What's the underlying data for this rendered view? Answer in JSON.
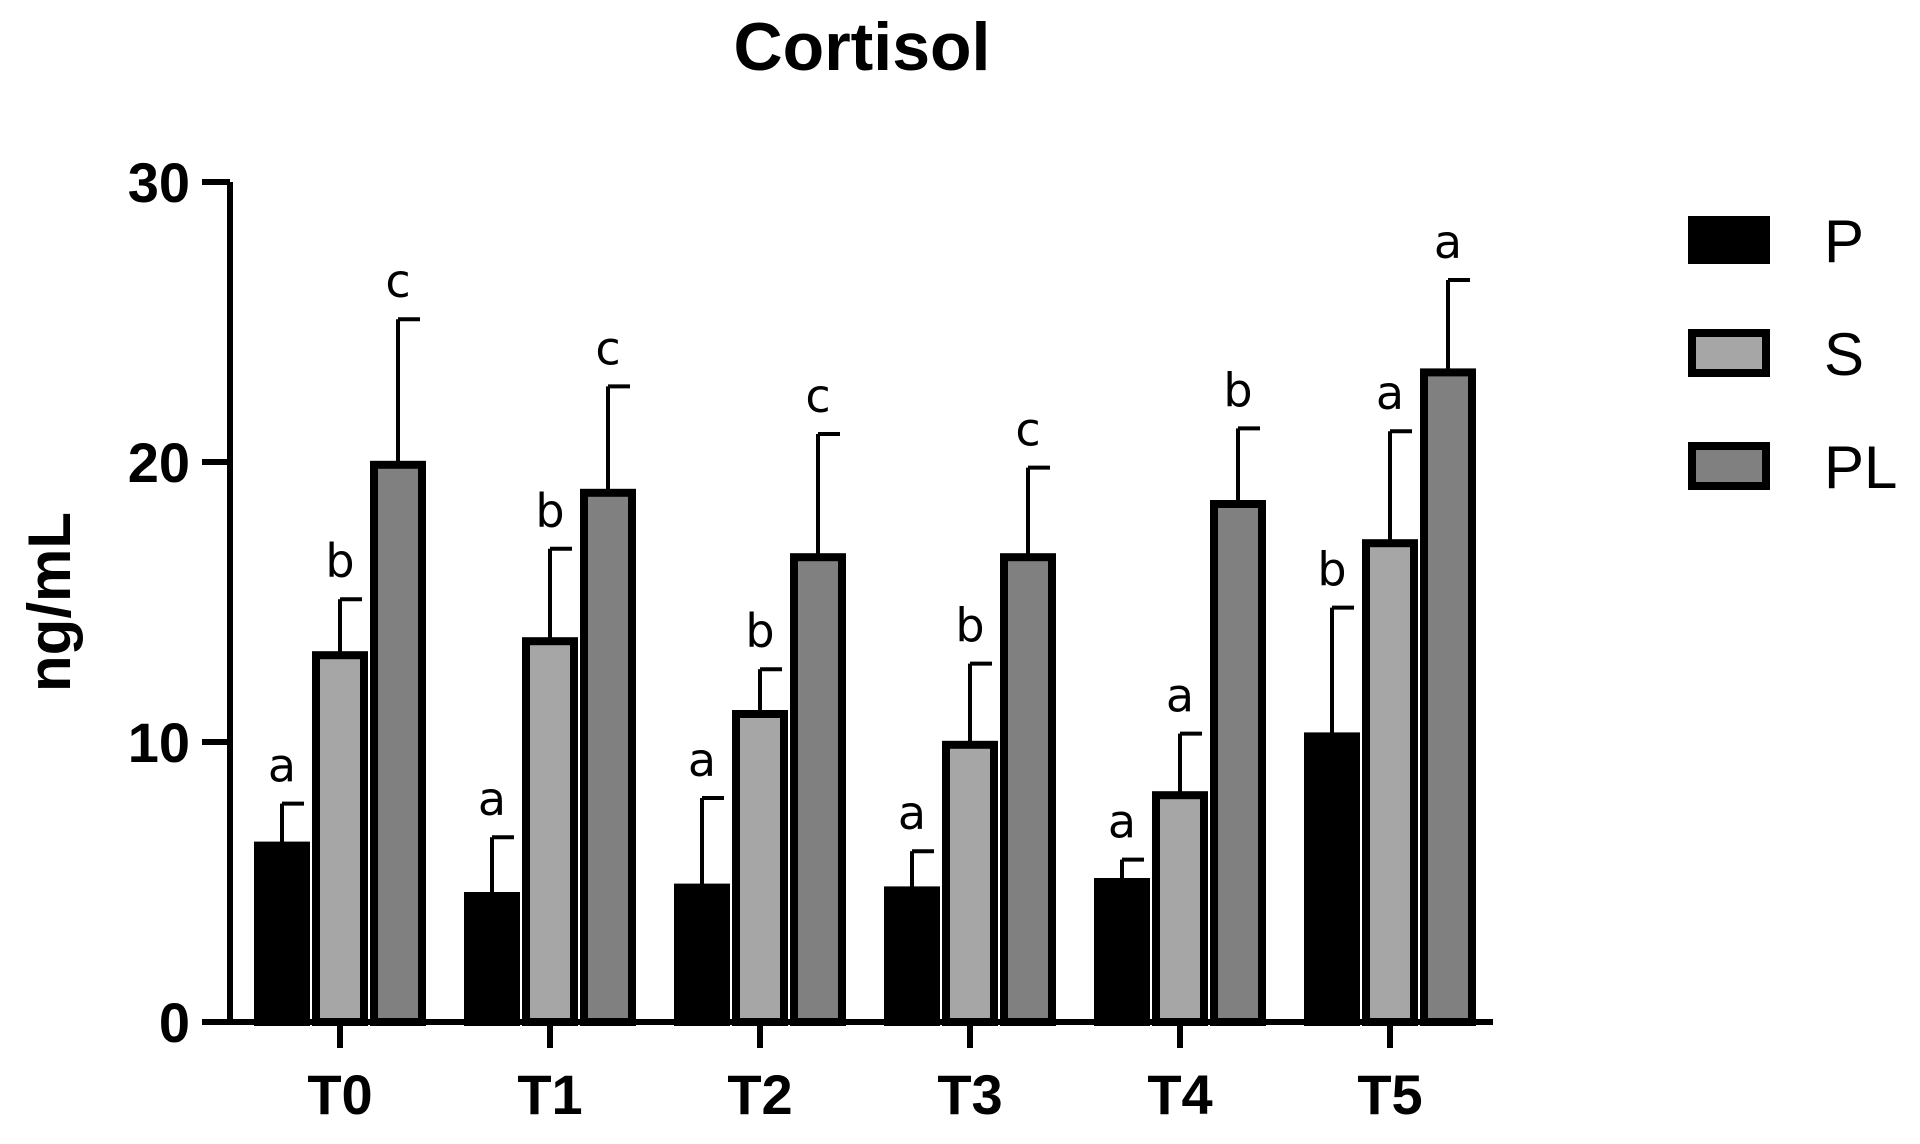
{
  "chart_data": {
    "type": "bar",
    "title": "Cortisol",
    "xlabel": "",
    "ylabel": "ng/mL",
    "ylim": [
      0,
      30
    ],
    "yticks": [
      0,
      10,
      20,
      30
    ],
    "categories": [
      "T0",
      "T1",
      "T2",
      "T3",
      "T4",
      "T5"
    ],
    "legend_position": "right",
    "series": [
      {
        "name": "P",
        "color": "#000000",
        "values": [
          6.3,
          4.5,
          4.8,
          4.7,
          5.0,
          10.2
        ],
        "errors": [
          1.5,
          2.1,
          3.2,
          1.4,
          0.8,
          4.6
        ],
        "letters": [
          "a",
          "a",
          "a",
          "a",
          "a",
          "b"
        ]
      },
      {
        "name": "S",
        "color": "#a6a6a6",
        "values": [
          13.1,
          13.6,
          11.0,
          9.9,
          8.1,
          17.1
        ],
        "errors": [
          2.0,
          3.3,
          1.6,
          2.9,
          2.2,
          4.0
        ],
        "letters": [
          "b",
          "b",
          "b",
          "b",
          "a",
          "a"
        ]
      },
      {
        "name": "PL",
        "color": "#808080",
        "values": [
          19.9,
          18.9,
          16.6,
          16.6,
          18.5,
          23.2
        ],
        "errors": [
          5.2,
          3.8,
          4.4,
          3.2,
          2.7,
          3.3
        ],
        "letters": [
          "c",
          "c",
          "c",
          "c",
          "b",
          "a"
        ]
      }
    ]
  }
}
